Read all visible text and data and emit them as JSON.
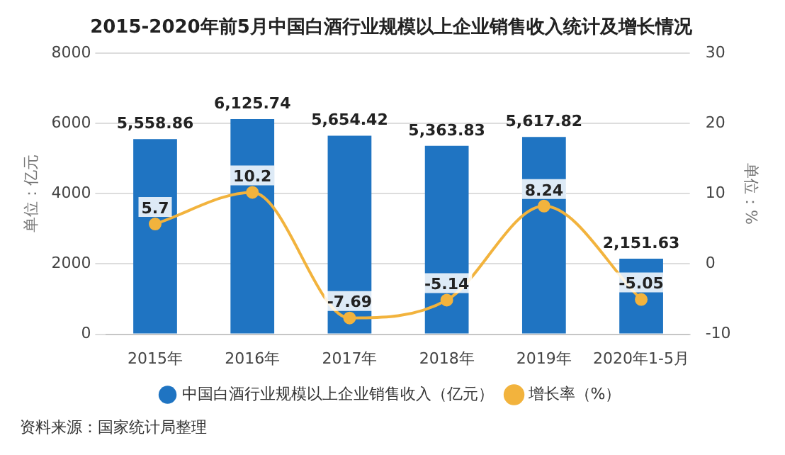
{
  "chart_data": {
    "type": "bar",
    "title": "2015-2020年前5月中国白酒行业规模以上企业销售收入统计及增长情况",
    "categories": [
      "2015年",
      "2016年",
      "2017年",
      "2018年",
      "2019年",
      "2020年1-5月"
    ],
    "series": [
      {
        "name": "中国白酒行业规模以上企业销售收入（亿元）",
        "color": "#1f74c2",
        "values": [
          5558.86,
          6125.74,
          5654.42,
          5363.83,
          5617.82,
          2151.63
        ],
        "value_labels": [
          "5,558.86",
          "6,125.74",
          "5,654.42",
          "5,363.83",
          "5,617.82",
          "2,151.63"
        ]
      },
      {
        "name": "增长率（%）",
        "type": "line",
        "axis": "y2",
        "color": "#f2b33d",
        "values": [
          5.7,
          10.2,
          -7.69,
          -5.14,
          8.24,
          -5.05
        ],
        "value_labels": [
          "5.7",
          "10.2",
          "-7.69",
          "-5.14",
          "8.24",
          "-5.05"
        ]
      }
    ],
    "ylabel": "单位：亿元",
    "y2label": "单位：%",
    "ylim": [
      0,
      8000
    ],
    "yticks": [
      0,
      2000,
      4000,
      6000,
      8000
    ],
    "y2lim": [
      -10,
      30
    ],
    "y2ticks": [
      -10,
      0,
      10,
      20,
      30
    ],
    "grid": "y",
    "legend": "bottom",
    "marker": "circle",
    "annotations": [
      "资料来源：国家统计局整理"
    ]
  }
}
